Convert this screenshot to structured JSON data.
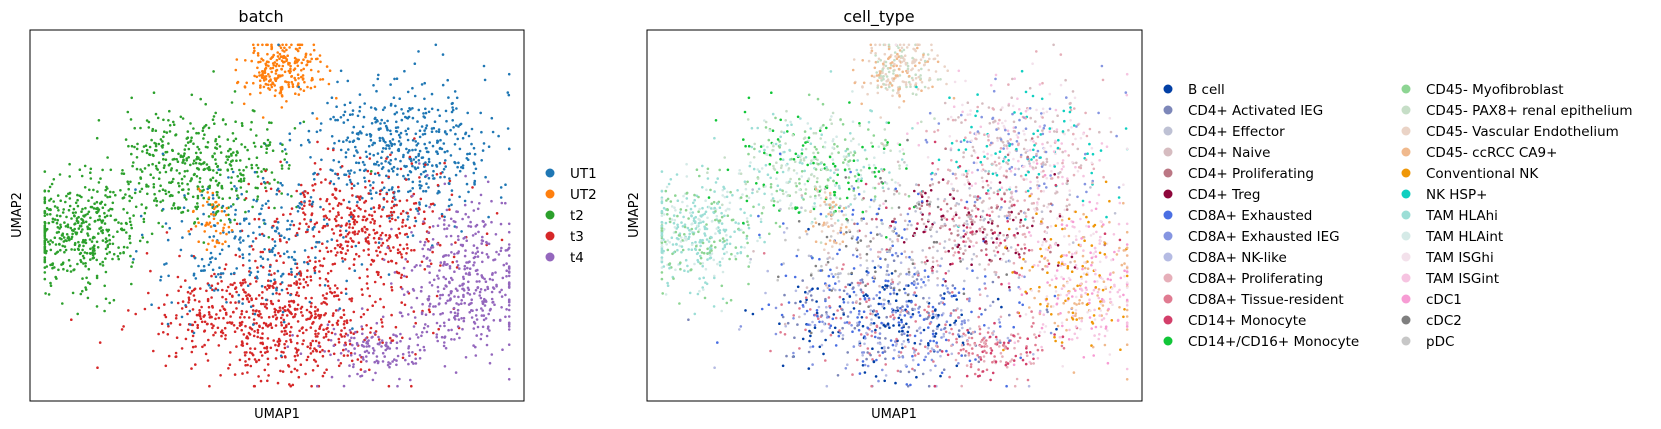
{
  "chart_data": [
    {
      "type": "scatter",
      "title": "batch",
      "xlabel": "UMAP1",
      "ylabel": "UMAP2",
      "legend_position": "right",
      "grid": false,
      "legend": [
        {
          "label": "UT1",
          "color": "#1f77b4"
        },
        {
          "label": "UT2",
          "color": "#ff7f0e"
        },
        {
          "label": "t2",
          "color": "#2ca02c"
        },
        {
          "label": "t3",
          "color": "#d62728"
        },
        {
          "label": "t4",
          "color": "#9467bd"
        }
      ]
    },
    {
      "type": "scatter",
      "title": "cell_type",
      "xlabel": "UMAP1",
      "ylabel": "UMAP2",
      "legend_position": "right",
      "grid": false,
      "legend": [
        {
          "label": "B cell",
          "color": "#023fa5"
        },
        {
          "label": "CD4+ Activated IEG",
          "color": "#7d87b9"
        },
        {
          "label": "CD4+ Effector",
          "color": "#bec1d4"
        },
        {
          "label": "CD4+ Naive",
          "color": "#d6bcc0"
        },
        {
          "label": "CD4+ Proliferating",
          "color": "#bb7784"
        },
        {
          "label": "CD4+ Treg",
          "color": "#8e063b"
        },
        {
          "label": "CD8A+ Exhausted",
          "color": "#4a6fe3"
        },
        {
          "label": "CD8A+ Exhausted IEG",
          "color": "#8595e1"
        },
        {
          "label": "CD8A+ NK-like",
          "color": "#b5bbe3"
        },
        {
          "label": "CD8A+ Proliferating",
          "color": "#e6afb9"
        },
        {
          "label": "CD8A+ Tissue-resident",
          "color": "#e07b91"
        },
        {
          "label": "CD14+ Monocyte",
          "color": "#d33f6a"
        },
        {
          "label": "CD14+/CD16+ Monocyte",
          "color": "#11c638"
        },
        {
          "label": "CD45- Myofibroblast",
          "color": "#8dd593"
        },
        {
          "label": "CD45- PAX8+ renal epithelium",
          "color": "#c6dec7"
        },
        {
          "label": "CD45- Vascular Endothelium",
          "color": "#ead3c6"
        },
        {
          "label": "CD45- ccRCC CA9+",
          "color": "#f0b98d"
        },
        {
          "label": "Conventional NK",
          "color": "#ef9708"
        },
        {
          "label": "NK HSP+",
          "color": "#0fcfc0"
        },
        {
          "label": "TAM HLAhi",
          "color": "#9cded6"
        },
        {
          "label": "TAM HLAint",
          "color": "#d5eae7"
        },
        {
          "label": "TAM ISGhi",
          "color": "#f3e1eb"
        },
        {
          "label": "TAM ISGint",
          "color": "#f6c4e1"
        },
        {
          "label": "cDC1",
          "color": "#f79cd4"
        },
        {
          "label": "cDC2",
          "color": "#7f7f7f"
        },
        {
          "label": "pDC",
          "color": "#c7c7c7"
        }
      ]
    }
  ]
}
